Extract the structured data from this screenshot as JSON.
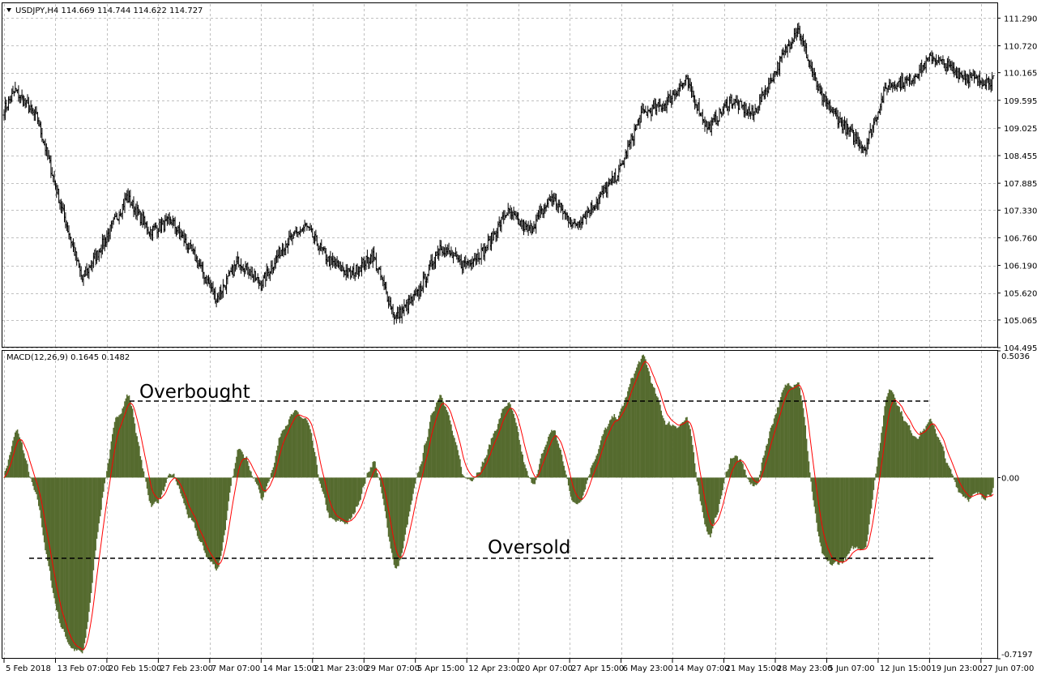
{
  "price_header": "USDJPY,H4  114.669 114.744 114.622 114.727",
  "macd_header": "MACD(12,26,9) 0.1645 0.1482",
  "colors": {
    "bar": "#000000",
    "histogram": "#556b2f",
    "signal": "#ff0000",
    "grid": "#c0c0c0",
    "border": "#000000"
  },
  "chart_data": [
    {
      "type": "line",
      "subtype": "ohlc-bars",
      "title": "USDJPY,H4",
      "header_values": [
        "114.669",
        "114.744",
        "114.622",
        "114.727"
      ],
      "ylim": [
        104.495,
        111.58
      ],
      "y_ticks": [
        "111.290",
        "110.720",
        "110.165",
        "109.595",
        "109.025",
        "108.455",
        "107.885",
        "107.330",
        "106.760",
        "106.190",
        "105.620",
        "105.065",
        "104.495"
      ],
      "x_ticks": [
        "5 Feb 2018",
        "13 Feb 07:00",
        "20 Feb 15:00",
        "27 Feb 23:00",
        "7 Mar 07:00",
        "14 Mar 15:00",
        "21 Mar 23:00",
        "29 Mar 07:00",
        "5 Apr 15:00",
        "12 Apr 23:00",
        "20 Apr 07:00",
        "27 Apr 15:00",
        "6 May 23:00",
        "14 May 07:00",
        "21 May 15:00",
        "28 May 23:00",
        "5 Jun 07:00",
        "12 Jun 15:00",
        "19 Jun 23:00",
        "27 Jun 07:00"
      ],
      "x_tick_index": [
        0,
        46,
        92,
        138,
        184,
        230,
        276,
        322,
        368,
        414,
        460,
        506,
        552,
        598,
        644,
        690,
        736,
        782,
        828,
        874
      ],
      "n_bars": 886,
      "anchors_index": [
        0,
        10,
        30,
        50,
        70,
        90,
        110,
        130,
        150,
        170,
        190,
        210,
        230,
        250,
        270,
        290,
        310,
        330,
        350,
        370,
        390,
        410,
        430,
        450,
        470,
        490,
        510,
        530,
        550,
        570,
        590,
        610,
        630,
        650,
        670,
        690,
        710,
        730,
        750,
        770,
        790,
        810,
        830,
        850,
        870,
        885
      ],
      "anchors_close": [
        109.4,
        109.8,
        109.2,
        107.5,
        105.9,
        106.7,
        107.6,
        106.9,
        107.1,
        106.4,
        105.5,
        106.3,
        105.8,
        106.6,
        107.0,
        106.3,
        106.0,
        106.4,
        105.1,
        105.6,
        106.6,
        106.2,
        106.5,
        107.3,
        106.9,
        107.6,
        107.0,
        107.5,
        108.1,
        109.3,
        109.5,
        110.0,
        109.0,
        109.6,
        109.3,
        110.2,
        111.1,
        109.7,
        109.1,
        108.6,
        109.9,
        110.0,
        110.5,
        110.2,
        110.0,
        110.0
      ]
    },
    {
      "type": "area",
      "subtype": "histogram",
      "title": "MACD(12,26,9)",
      "header_values": [
        "0.1645",
        "0.1482"
      ],
      "ylim": [
        -0.7197,
        0.5036
      ],
      "y_ticks": [
        "0.5036",
        "0.00",
        "-0.7197"
      ],
      "fast": 12,
      "slow": 26,
      "signal": 9
    }
  ],
  "annotations": {
    "overbought": "Overbought",
    "oversold": "Oversold"
  }
}
